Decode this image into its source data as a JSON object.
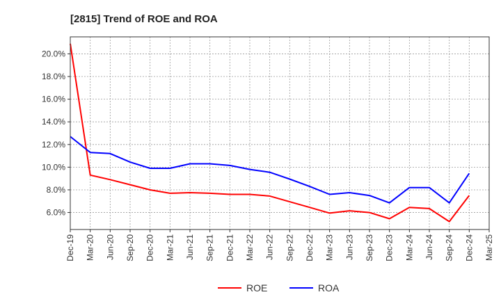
{
  "chart_data": {
    "type": "line",
    "title": "[2815]  Trend of ROE and ROA",
    "xlabel": "",
    "ylabel": "",
    "x": [
      "Dec-19",
      "Mar-20",
      "Jun-20",
      "Sep-20",
      "Dec-20",
      "Mar-21",
      "Jun-21",
      "Sep-21",
      "Dec-21",
      "Mar-22",
      "Jun-22",
      "Sep-22",
      "Dec-22",
      "Mar-23",
      "Jun-23",
      "Sep-23",
      "Dec-23",
      "Mar-24",
      "Jun-24",
      "Sep-24",
      "Dec-24",
      "Mar-25"
    ],
    "ylim": [
      4.5,
      21.5
    ],
    "yticks": [
      "6.0%",
      "8.0%",
      "10.0%",
      "12.0%",
      "14.0%",
      "16.0%",
      "18.0%",
      "20.0%"
    ],
    "ytick_values": [
      6,
      8,
      10,
      12,
      14,
      16,
      18,
      20
    ],
    "grid": true,
    "legend_position": "bottom-center",
    "series": [
      {
        "name": "ROE",
        "color": "#ff0000",
        "values": [
          20.9,
          9.3,
          8.9,
          8.45,
          8.0,
          7.7,
          7.75,
          7.7,
          7.6,
          7.6,
          7.45,
          6.95,
          6.45,
          5.95,
          6.15,
          6.0,
          5.45,
          6.45,
          6.35,
          5.2,
          7.5,
          null
        ]
      },
      {
        "name": "ROA",
        "color": "#0000ff",
        "values": [
          12.7,
          11.3,
          11.2,
          10.45,
          9.9,
          9.9,
          10.3,
          10.3,
          10.15,
          9.8,
          9.55,
          8.95,
          8.3,
          7.6,
          7.75,
          7.5,
          6.85,
          8.2,
          8.2,
          6.85,
          9.45,
          null
        ]
      }
    ]
  }
}
